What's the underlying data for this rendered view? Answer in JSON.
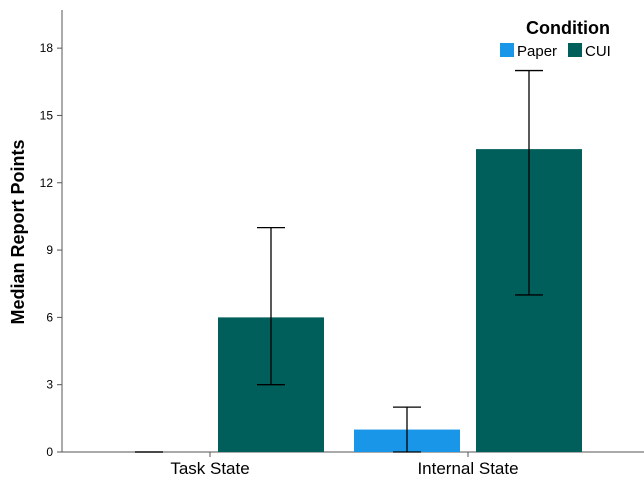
{
  "chart_data": {
    "type": "bar",
    "title": "",
    "xlabel": "",
    "ylabel": "Median Report Points",
    "categories": [
      "Task State",
      "Internal State"
    ],
    "series": [
      {
        "name": "Paper",
        "color": "#1a96e8",
        "values": [
          0,
          1
        ],
        "error_low": [
          0,
          0
        ],
        "error_high": [
          0,
          2
        ]
      },
      {
        "name": "CUI",
        "color": "#005f5b",
        "values": [
          6,
          13.5
        ],
        "error_low": [
          3,
          7
        ],
        "error_high": [
          10,
          17
        ]
      }
    ],
    "ylim": [
      0,
      19.7
    ],
    "yticks": [
      0,
      3,
      6,
      9,
      12,
      15,
      18
    ],
    "grid": false,
    "legend": {
      "title": "Condition",
      "placement": "top-right"
    }
  }
}
